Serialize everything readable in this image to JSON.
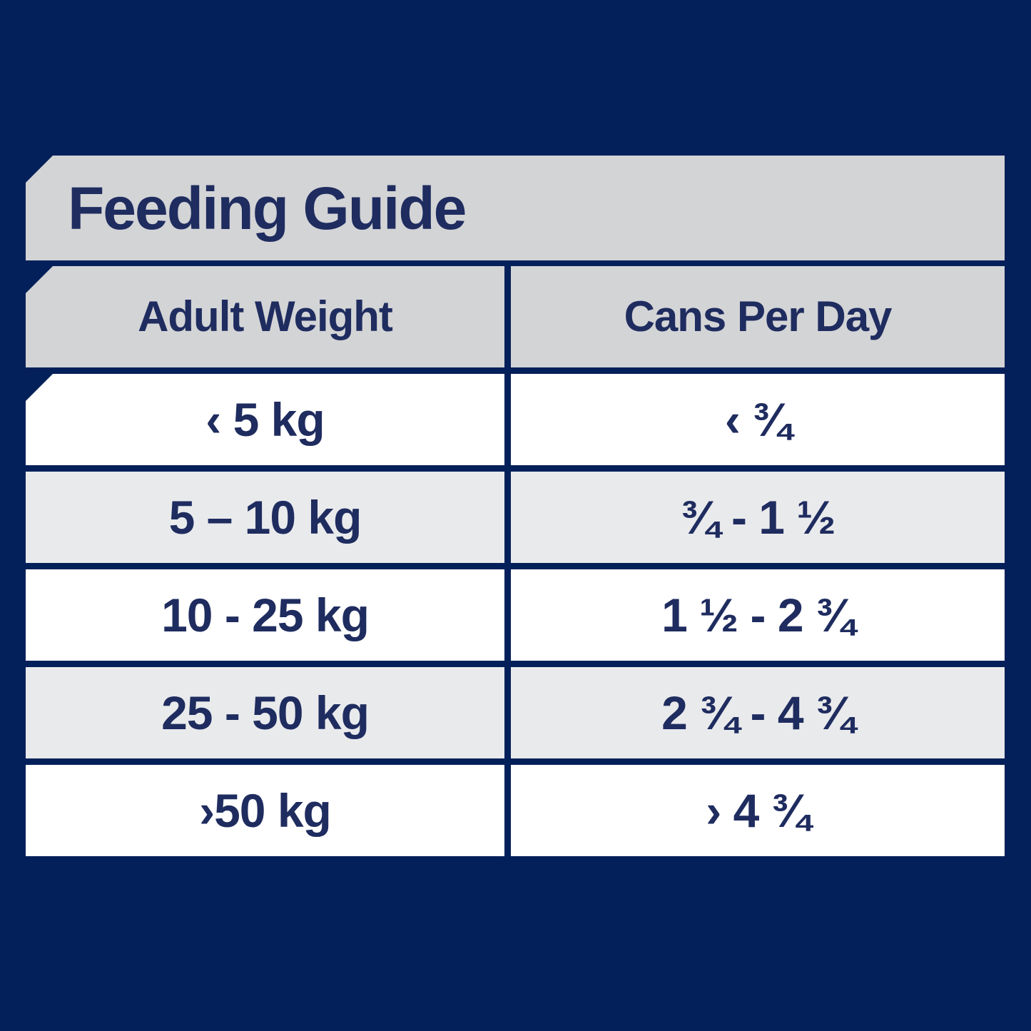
{
  "title": "Feeding Guide",
  "table": {
    "columns": [
      "Adult Weight",
      "Cans Per Day"
    ],
    "rows": [
      {
        "weight": "‹ 5 kg",
        "cans": "‹ ¾"
      },
      {
        "weight": "5 – 10 kg",
        "cans": "¾ - 1 ½"
      },
      {
        "weight": "10 - 25 kg",
        "cans": "1 ½ - 2 ¾"
      },
      {
        "weight": "25 - 50 kg",
        "cans": "2 ¾ - 4 ¾"
      },
      {
        "weight": "›50 kg",
        "cans": "› 4 ¾"
      }
    ]
  },
  "chart_data": {
    "type": "table",
    "title": "Feeding Guide",
    "columns": [
      "Adult Weight",
      "Cans Per Day"
    ],
    "rows": [
      [
        "‹ 5 kg",
        "‹ ¾"
      ],
      [
        "5 – 10 kg",
        "¾ - 1 ½"
      ],
      [
        "10 - 25 kg",
        "1 ½ - 2 ¾"
      ],
      [
        "25 - 50 kg",
        "2 ¾ - 4 ¾"
      ],
      [
        "›50 kg",
        "› 4 ¾"
      ]
    ]
  },
  "colors": {
    "background_navy": "#04205a",
    "text_navy": "#1f2c5f",
    "banner_gray": "#d3d4d6",
    "row_shade_gray": "#e9eaec",
    "row_white": "#ffffff"
  }
}
